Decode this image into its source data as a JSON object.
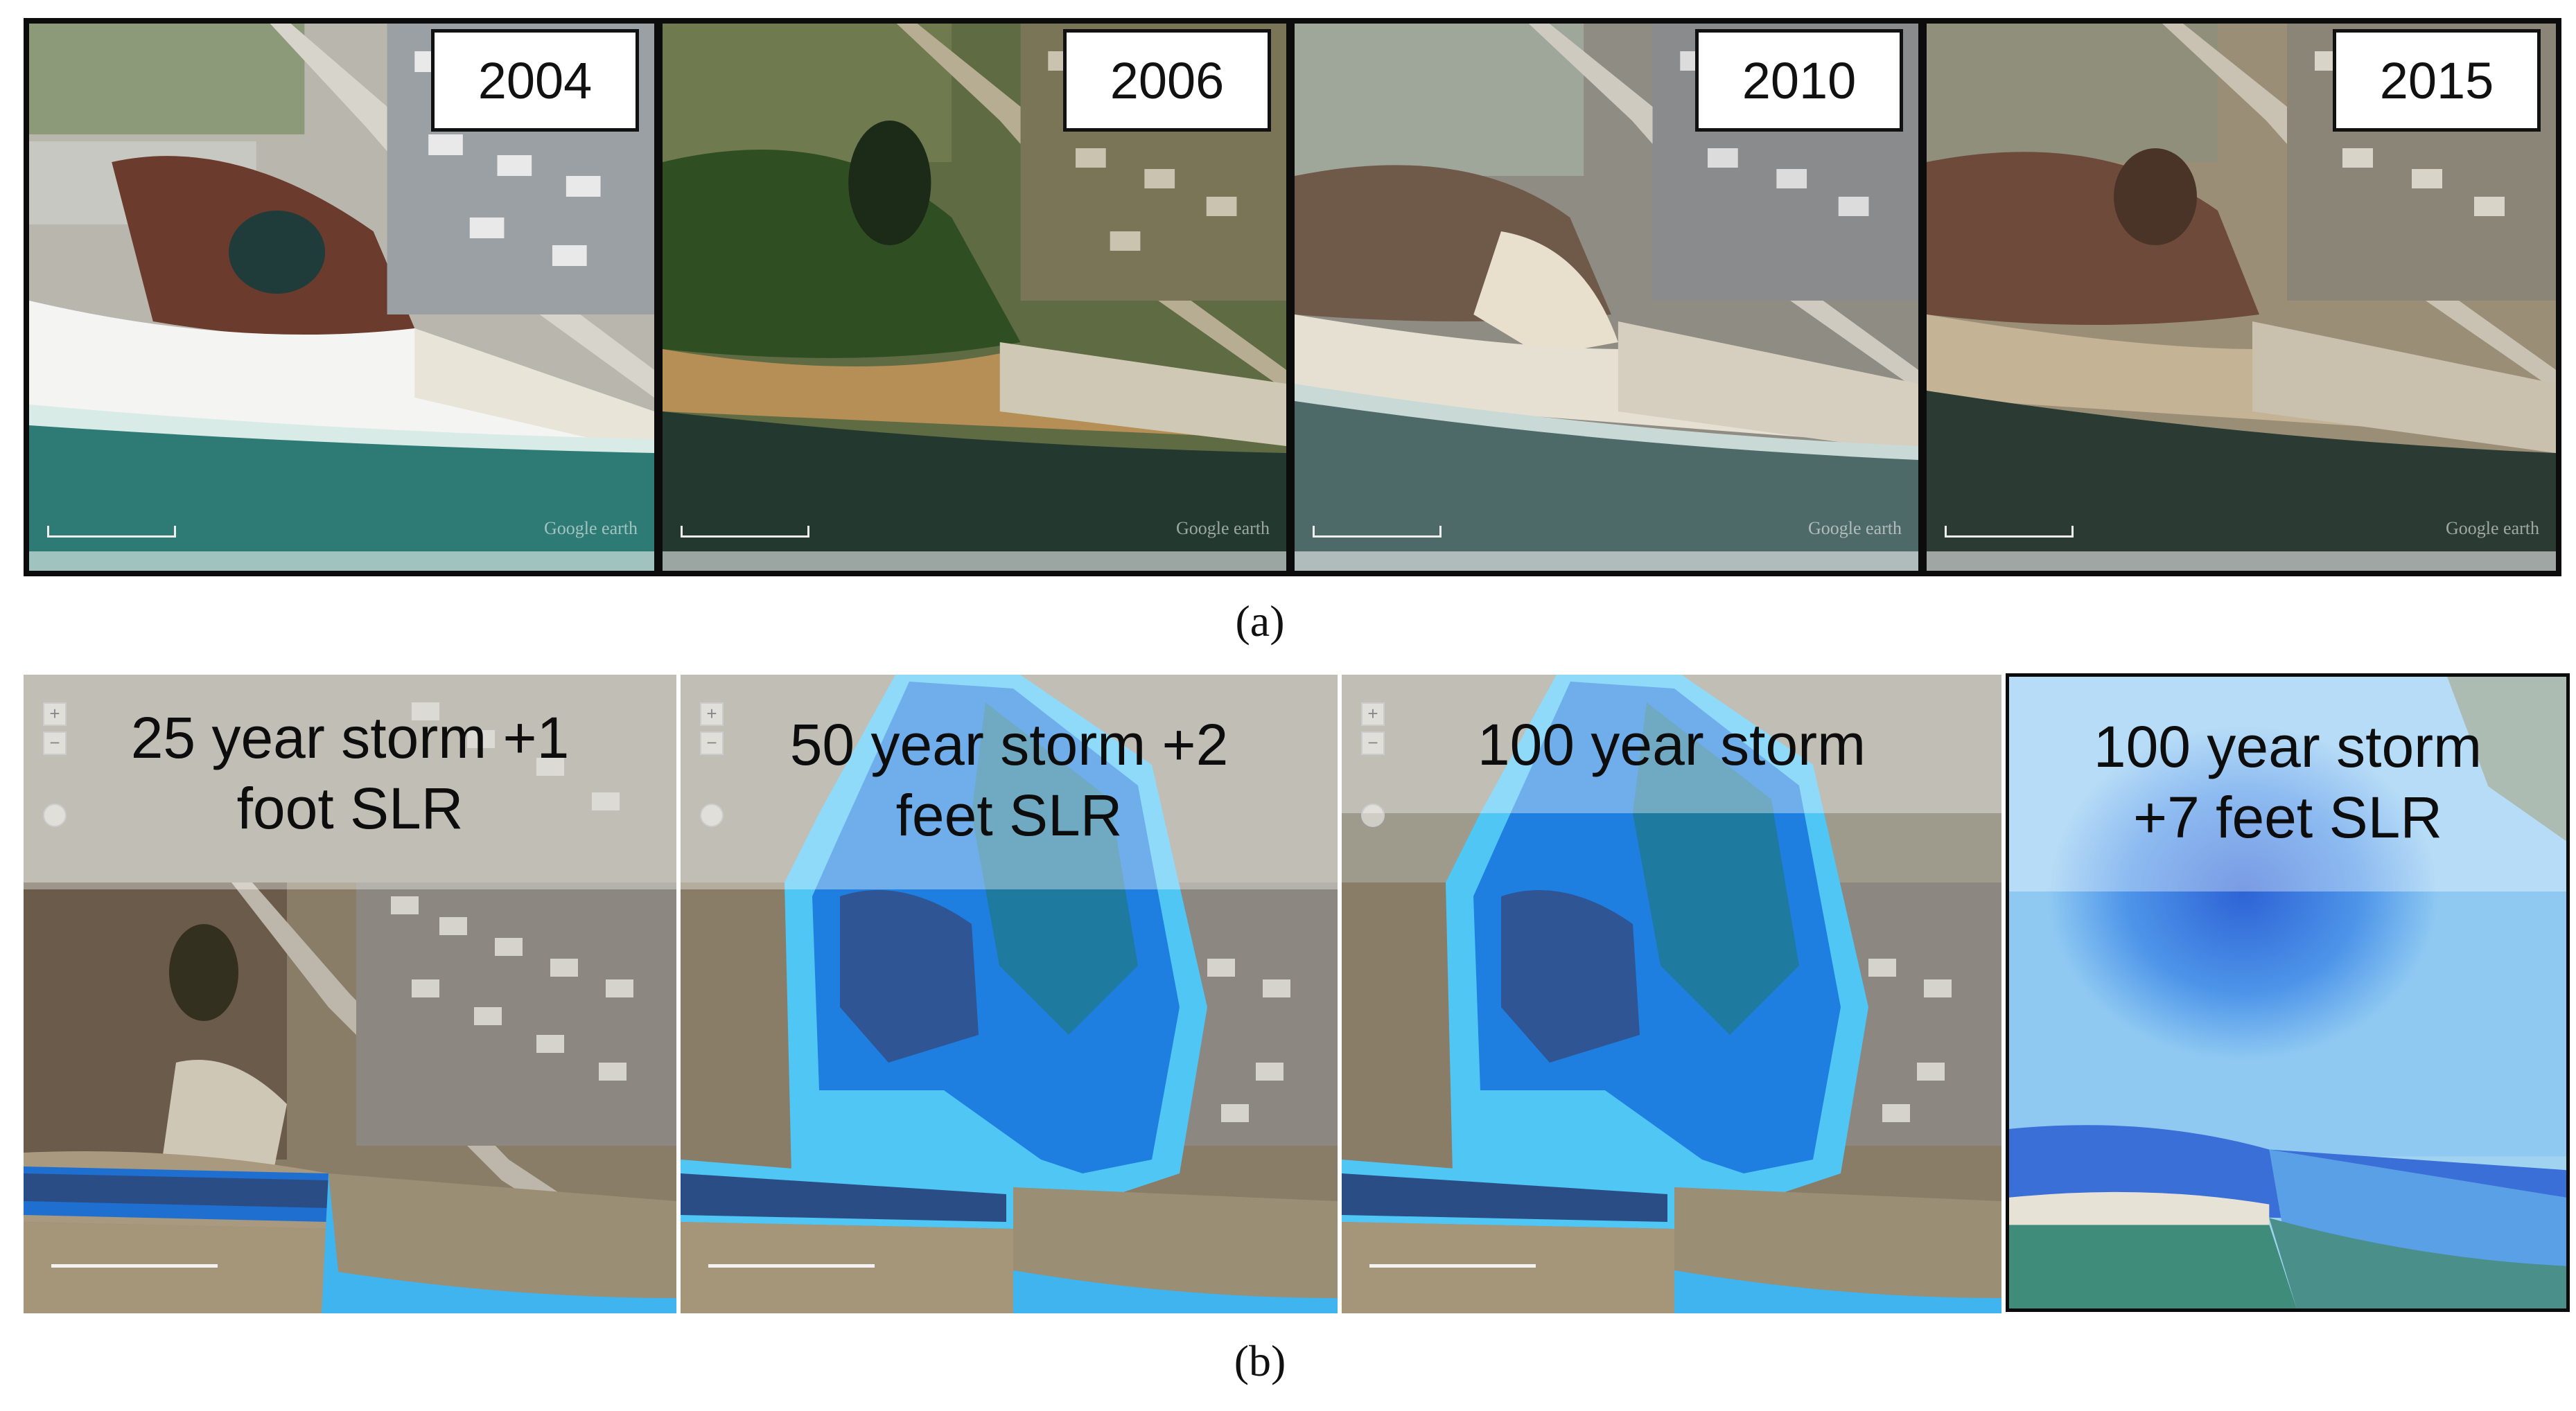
{
  "top_row": {
    "years": [
      "2004",
      "2006",
      "2010",
      "2015"
    ],
    "watermark": "Google earth"
  },
  "captions": {
    "a": "(a)",
    "b": "(b)"
  },
  "bottom_row": {
    "labels": [
      [
        "25 year storm +1",
        "foot SLR"
      ],
      [
        "50 year storm +2",
        "feet SLR"
      ],
      [
        "100 year storm",
        ""
      ],
      [
        "100 year storm",
        "+7 feet SLR"
      ]
    ],
    "zoom_in": "+",
    "zoom_out": "−"
  },
  "colors": {
    "flood_light": "#4fc6f4",
    "flood_mid": "#1e7fe0",
    "flood_dark": "#2b4f86",
    "ocean": "#2f6f6c",
    "land": "#8b7e66"
  }
}
